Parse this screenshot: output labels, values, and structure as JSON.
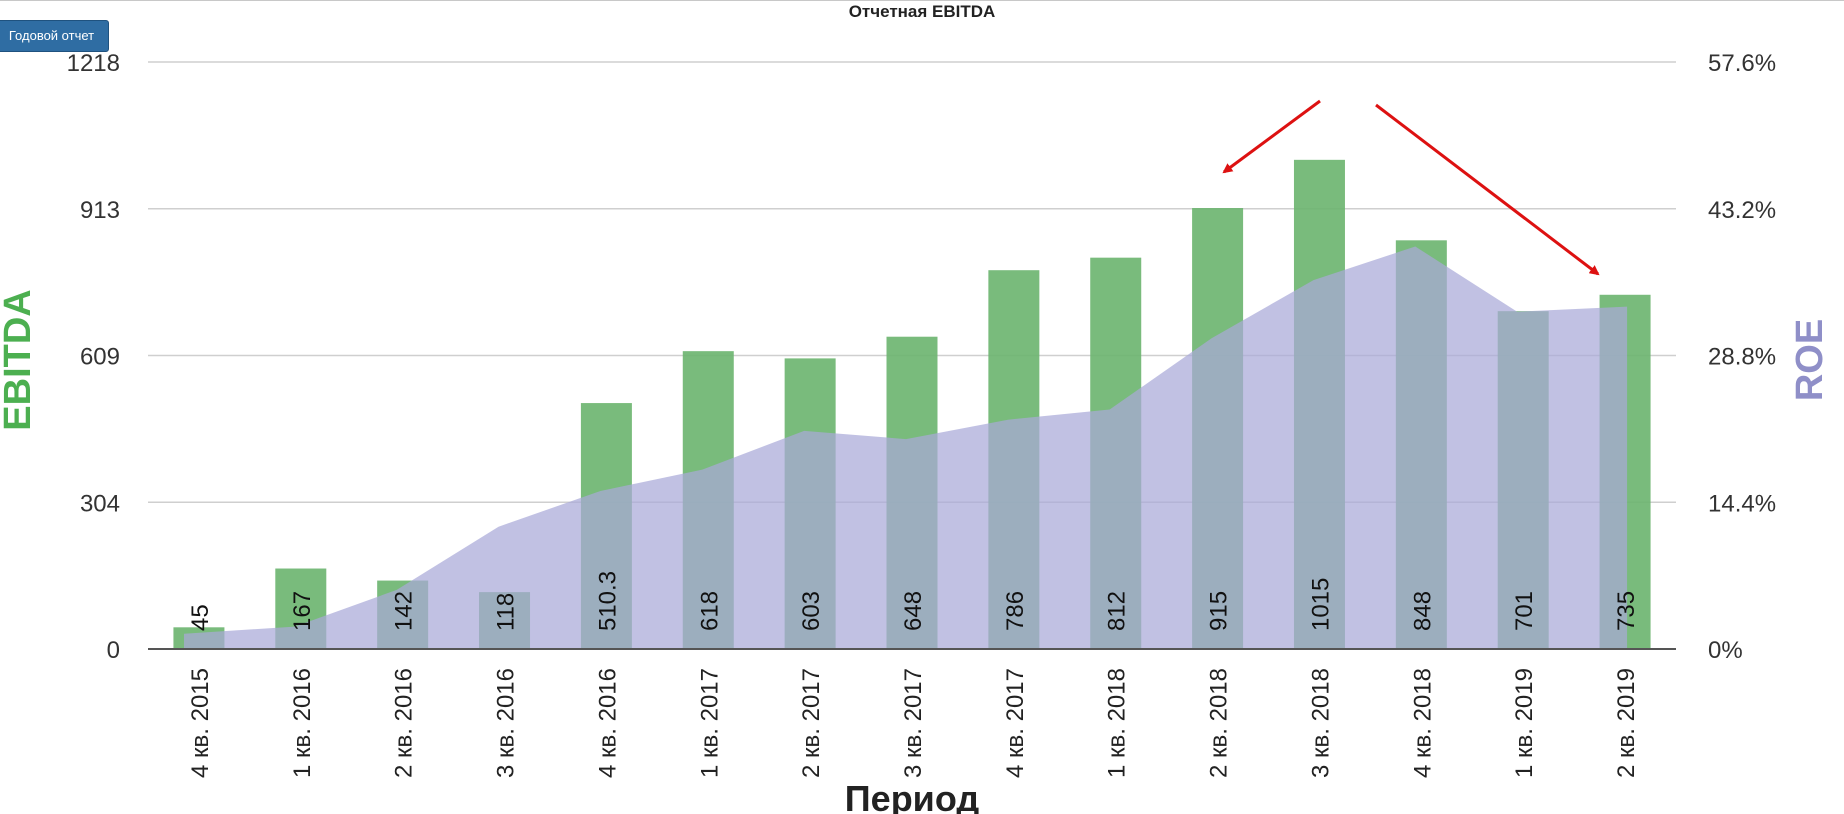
{
  "toolbar": {
    "annual_report_label": "Годовой отчет"
  },
  "colors": {
    "bar": "#6ab46e",
    "area": "#a9a9d8",
    "arrow": "#dd1111",
    "left_axis_label": "#4caf50",
    "right_axis_label": "#8f8fc8"
  },
  "chart_data": {
    "type": "bar",
    "title": "Отчетная EBITDA",
    "xlabel": "Период",
    "ylabel": "EBITDA",
    "y2label": "ROE",
    "categories": [
      "4 кв. 2015",
      "1 кв. 2016",
      "2 кв. 2016",
      "3 кв. 2016",
      "4 кв. 2016",
      "1 кв. 2017",
      "2 кв. 2017",
      "3 кв. 2017",
      "4 кв. 2017",
      "1 кв. 2018",
      "2 кв. 2018",
      "3 кв. 2018",
      "4 кв. 2018",
      "1 кв. 2019",
      "2 кв. 2019"
    ],
    "series": [
      {
        "name": "EBITDA",
        "type": "bar",
        "axis": "left",
        "values": [
          45,
          167,
          142,
          118,
          510.3,
          618,
          603,
          648,
          786,
          812,
          915,
          1015,
          848,
          701,
          735
        ],
        "labels": [
          "45",
          "167",
          "142",
          "118",
          "510.3",
          "618",
          "603",
          "648",
          "786",
          "812",
          "915",
          "1015",
          "848",
          "701",
          "735"
        ]
      },
      {
        "name": "ROE",
        "type": "area",
        "axis": "right",
        "values": [
          1.5,
          2.2,
          5.8,
          12.0,
          15.5,
          17.6,
          21.4,
          20.6,
          22.5,
          23.5,
          30.5,
          36.2,
          39.5,
          33.1,
          33.6
        ]
      }
    ],
    "ylim": [
      0,
      1218
    ],
    "y_ticks": [
      "0",
      "304",
      "609",
      "913",
      "1218"
    ],
    "y2lim": [
      0,
      57.6
    ],
    "y2_ticks": [
      "0%",
      "14.4%",
      "28.8%",
      "43.2%",
      "57.6%"
    ],
    "grid": true,
    "legend": "none",
    "annotations": [
      "red-arrow-to-2kv2018",
      "red-arrow-to-2kv2019"
    ]
  }
}
